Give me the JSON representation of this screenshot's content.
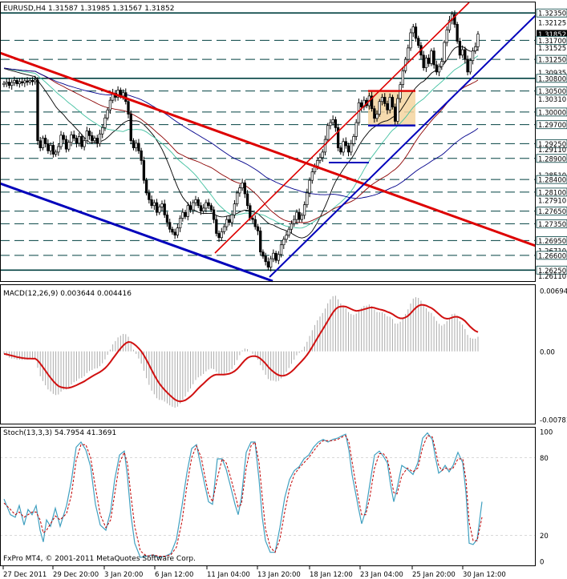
{
  "header": {
    "main": "EURUSD,H4 1.31587 1.31985 1.31567 1.31852",
    "macd": "MACD(12,26,9) 0.003644 0.004416",
    "stoch": "Stoch(13,3,3) 54.7954 41.3691",
    "copyright": "FxPro MT4, © 2001-2011 MetaQuotes Software Corp."
  },
  "colors": {
    "candle": "#000000",
    "red_channel": "#dd0000",
    "blue_channel": "#0000bb",
    "ma_fast": "#000000",
    "ma_slow": "#00008b",
    "ma_teal": "#40c0a0",
    "ma_brown": "#8b0000",
    "level_line": "#004040",
    "macd_signal": "#d01010",
    "macd_hist": "#aaaaaa",
    "stoch_main": "#40a0c0",
    "stoch_signal": "#c00000",
    "box_fill": "#f5d5a0"
  },
  "chart_data": [
    {
      "type": "candlestick",
      "symbol": "EURUSD",
      "timeframe": "H4",
      "ohlc_last": {
        "open": 1.31587,
        "high": 1.31985,
        "low": 1.31567,
        "close": 1.31852
      },
      "ylim": [
        1.2597,
        1.3262
      ],
      "x_tick_labels": [
        "27 Dec 2011",
        "29 Dec 20:00",
        "3 Jan 20:00",
        "6 Jan 12:00",
        "11 Jan 04:00",
        "13 Jan 20:00",
        "18 Jan 12:00",
        "23 Jan 04:00",
        "25 Jan 20:00",
        "30 Jan 12:00"
      ],
      "price_labels": [
        {
          "text": "1.32350",
          "value": 1.3235,
          "boxed": true
        },
        {
          "text": "1.32125",
          "value": 1.32125,
          "boxed": false
        },
        {
          "text": "1.31852",
          "value": 1.31852,
          "boxed": true,
          "current": true
        },
        {
          "text": "1.31700",
          "value": 1.317,
          "boxed": true
        },
        {
          "text": "1.31525",
          "value": 1.31525,
          "boxed": false
        },
        {
          "text": "1.31250",
          "value": 1.3125,
          "boxed": true
        },
        {
          "text": "1.30935",
          "value": 1.30935,
          "boxed": false
        },
        {
          "text": "1.30800",
          "value": 1.308,
          "boxed": true
        },
        {
          "text": "1.30500",
          "value": 1.305,
          "boxed": true
        },
        {
          "text": "1.30310",
          "value": 1.3031,
          "boxed": false
        },
        {
          "text": "1.30000",
          "value": 1.3,
          "boxed": true
        },
        {
          "text": "1.29700",
          "value": 1.297,
          "boxed": true
        },
        {
          "text": "1.29250",
          "value": 1.2925,
          "boxed": true
        },
        {
          "text": "1.29110",
          "value": 1.2911,
          "boxed": false
        },
        {
          "text": "1.28900",
          "value": 1.289,
          "boxed": true
        },
        {
          "text": "1.28510",
          "value": 1.2851,
          "boxed": false
        },
        {
          "text": "1.28400",
          "value": 1.284,
          "boxed": true
        },
        {
          "text": "1.28100",
          "value": 1.281,
          "boxed": true
        },
        {
          "text": "1.27910",
          "value": 1.2791,
          "boxed": false
        },
        {
          "text": "1.27650",
          "value": 1.2765,
          "boxed": true
        },
        {
          "text": "1.27350",
          "value": 1.2735,
          "boxed": true
        },
        {
          "text": "1.26950",
          "value": 1.2695,
          "boxed": true
        },
        {
          "text": "1.26710",
          "value": 1.2671,
          "boxed": false
        },
        {
          "text": "1.26600",
          "value": 1.266,
          "boxed": true
        },
        {
          "text": "1.26250",
          "value": 1.2625,
          "boxed": true
        },
        {
          "text": "1.26110",
          "value": 1.2611,
          "boxed": false
        }
      ],
      "levels_solid": [
        1.3235,
        1.308,
        1.2625
      ],
      "levels_dashed": [
        1.317,
        1.3125,
        1.305,
        1.3,
        1.297,
        1.2925,
        1.289,
        1.284,
        1.281,
        1.2765,
        1.2735,
        1.2695,
        1.266
      ],
      "closes": [
        1.3068,
        1.3071,
        1.3063,
        1.307,
        1.3075,
        1.3067,
        1.3072,
        1.3069,
        1.3074,
        1.3071,
        1.3075,
        1.3072,
        1.3076,
        1.2932,
        1.2915,
        1.2938,
        1.2925,
        1.2908,
        1.2921,
        1.29,
        1.2905,
        1.2918,
        1.2945,
        1.2935,
        1.2912,
        1.2928,
        1.2946,
        1.2938,
        1.2926,
        1.2942,
        1.2918,
        1.2932,
        1.2955,
        1.2944,
        1.2932,
        1.2938,
        1.2925,
        1.2948,
        1.2963,
        1.2986,
        1.3005,
        1.3028,
        1.3045,
        1.3035,
        1.3052,
        1.3038,
        1.3046,
        1.3025,
        1.2995,
        1.2932,
        1.2915,
        1.2926,
        1.2908,
        1.2885,
        1.2838,
        1.2808,
        1.2792,
        1.2778,
        1.2785,
        1.2762,
        1.2775,
        1.2782,
        1.2756,
        1.2738,
        1.2722,
        1.2715,
        1.2708,
        1.2725,
        1.2748,
        1.2762,
        1.2752,
        1.2778,
        1.2768,
        1.2785,
        1.2792,
        1.2778,
        1.2765,
        1.2772,
        1.2785,
        1.2778,
        1.2768,
        1.2745,
        1.2712,
        1.2702,
        1.2716,
        1.2728,
        1.2745,
        1.2738,
        1.2756,
        1.2782,
        1.2808,
        1.282,
        1.2832,
        1.2806,
        1.2778,
        1.2748,
        1.2745,
        1.2728,
        1.2718,
        1.2668,
        1.2658,
        1.2645,
        1.2632,
        1.2652,
        1.2665,
        1.2648,
        1.2662,
        1.2685,
        1.2698,
        1.2708,
        1.2722,
        1.2735,
        1.2745,
        1.2762,
        1.2745,
        1.2755,
        1.278,
        1.2808,
        1.2838,
        1.2858,
        1.2872,
        1.2885,
        1.2892,
        1.2905,
        1.2935,
        1.2968,
        1.2975,
        1.2982,
        1.2963,
        1.2915,
        1.2905,
        1.293,
        1.292,
        1.2905,
        1.2925,
        1.2942,
        1.2975,
        1.3022,
        1.3012,
        1.3028,
        1.3015,
        1.3038,
        1.3008,
        1.2985,
        1.2995,
        1.3025,
        1.3035,
        1.302,
        1.3005,
        1.3035,
        1.3012,
        1.2978,
        1.3032,
        1.3065,
        1.3098,
        1.3125,
        1.3152,
        1.3188,
        1.3202,
        1.3175,
        1.3158,
        1.3135,
        1.3105,
        1.3128,
        1.3115,
        1.3145,
        1.3112,
        1.3095,
        1.3108,
        1.312,
        1.3165,
        1.3195,
        1.3218,
        1.3232,
        1.3208,
        1.3168,
        1.3135,
        1.3148,
        1.3125,
        1.3095,
        1.3122,
        1.3145,
        1.3155,
        1.3185
      ]
    },
    {
      "type": "macd",
      "name": "MACD(12,26,9)",
      "values_text": [
        "0.003644",
        "0.004416"
      ],
      "ylim": [
        -0.00781,
        0.00694
      ],
      "tick_labels": [
        {
          "text": "0.00694",
          "value": 0.00694
        },
        {
          "text": "0.00",
          "value": 0.0
        },
        {
          "text": "-0.00781",
          "value": -0.00781
        }
      ]
    },
    {
      "type": "stochastic",
      "name": "Stoch(13,3,3)",
      "values_text": [
        "54.7954",
        "41.3691"
      ],
      "ylim": [
        0,
        100
      ],
      "tick_labels": [
        {
          "text": "100",
          "value": 100
        },
        {
          "text": "80",
          "value": 80
        },
        {
          "text": "20",
          "value": 20
        },
        {
          "text": "0",
          "value": 0
        }
      ],
      "k_points": [
        [
          0,
          48
        ],
        [
          8,
          36
        ],
        [
          14,
          34
        ],
        [
          19,
          43
        ],
        [
          25,
          28
        ],
        [
          30,
          40
        ],
        [
          35,
          36
        ],
        [
          40,
          43
        ],
        [
          45,
          24
        ],
        [
          49,
          15
        ],
        [
          53,
          32
        ],
        [
          58,
          27
        ],
        [
          64,
          41
        ],
        [
          70,
          27
        ],
        [
          78,
          43
        ],
        [
          84,
          62
        ],
        [
          90,
          88
        ],
        [
          96,
          92
        ],
        [
          102,
          86
        ],
        [
          108,
          73
        ],
        [
          114,
          44
        ],
        [
          120,
          28
        ],
        [
          127,
          24
        ],
        [
          133,
          39
        ],
        [
          138,
          63
        ],
        [
          144,
          82
        ],
        [
          150,
          85
        ],
        [
          154,
          65
        ],
        [
          158,
          37
        ],
        [
          163,
          14
        ],
        [
          170,
          3
        ],
        [
          178,
          4
        ],
        [
          186,
          5
        ],
        [
          193,
          3
        ],
        [
          201,
          4
        ],
        [
          208,
          6
        ],
        [
          215,
          17
        ],
        [
          222,
          43
        ],
        [
          228,
          68
        ],
        [
          234,
          87
        ],
        [
          240,
          90
        ],
        [
          246,
          72
        ],
        [
          250,
          60
        ],
        [
          255,
          46
        ],
        [
          260,
          44
        ],
        [
          266,
          79
        ],
        [
          272,
          79
        ],
        [
          277,
          71
        ],
        [
          282,
          59
        ],
        [
          288,
          44
        ],
        [
          292,
          36
        ],
        [
          296,
          49
        ],
        [
          302,
          84
        ],
        [
          308,
          92
        ],
        [
          313,
          92
        ],
        [
          318,
          63
        ],
        [
          322,
          34
        ],
        [
          326,
          16
        ],
        [
          332,
          7
        ],
        [
          338,
          7
        ],
        [
          344,
          26
        ],
        [
          350,
          49
        ],
        [
          356,
          63
        ],
        [
          362,
          70
        ],
        [
          368,
          73
        ],
        [
          374,
          79
        ],
        [
          380,
          82
        ],
        [
          386,
          88
        ],
        [
          392,
          92
        ],
        [
          398,
          94
        ],
        [
          404,
          92
        ],
        [
          410,
          94
        ],
        [
          416,
          95
        ],
        [
          422,
          97
        ],
        [
          426,
          98
        ],
        [
          430,
          86
        ],
        [
          434,
          67
        ],
        [
          438,
          54
        ],
        [
          442,
          41
        ],
        [
          446,
          29
        ],
        [
          451,
          39
        ],
        [
          456,
          59
        ],
        [
          462,
          82
        ],
        [
          468,
          85
        ],
        [
          473,
          81
        ],
        [
          478,
          76
        ],
        [
          482,
          59
        ],
        [
          486,
          46
        ],
        [
          490,
          56
        ],
        [
          496,
          74
        ],
        [
          503,
          71
        ],
        [
          510,
          67
        ],
        [
          516,
          76
        ],
        [
          522,
          95
        ],
        [
          528,
          99
        ],
        [
          534,
          94
        ],
        [
          538,
          80
        ],
        [
          542,
          68
        ],
        [
          546,
          70
        ],
        [
          550,
          74
        ],
        [
          555,
          69
        ],
        [
          560,
          74
        ],
        [
          566,
          84
        ],
        [
          572,
          76
        ],
        [
          576,
          53
        ],
        [
          580,
          14
        ],
        [
          585,
          13
        ],
        [
          590,
          17
        ],
        [
          596,
          46
        ]
      ],
      "d_points": [
        [
          0,
          45
        ],
        [
          8,
          40
        ],
        [
          14,
          36
        ],
        [
          19,
          38
        ],
        [
          25,
          34
        ],
        [
          30,
          36
        ],
        [
          35,
          38
        ],
        [
          40,
          38
        ],
        [
          45,
          32
        ],
        [
          49,
          22
        ],
        [
          53,
          24
        ],
        [
          58,
          29
        ],
        [
          64,
          35
        ],
        [
          70,
          32
        ],
        [
          78,
          37
        ],
        [
          84,
          51
        ],
        [
          90,
          78
        ],
        [
          96,
          90
        ],
        [
          102,
          90
        ],
        [
          108,
          80
        ],
        [
          114,
          57
        ],
        [
          120,
          36
        ],
        [
          127,
          26
        ],
        [
          133,
          32
        ],
        [
          138,
          52
        ],
        [
          144,
          76
        ],
        [
          150,
          84
        ],
        [
          154,
          75
        ],
        [
          158,
          52
        ],
        [
          163,
          27
        ],
        [
          170,
          8
        ],
        [
          178,
          4
        ],
        [
          186,
          5
        ],
        [
          193,
          4
        ],
        [
          201,
          4
        ],
        [
          208,
          5
        ],
        [
          215,
          11
        ],
        [
          222,
          31
        ],
        [
          228,
          58
        ],
        [
          234,
          80
        ],
        [
          240,
          89
        ],
        [
          246,
          80
        ],
        [
          250,
          67
        ],
        [
          255,
          52
        ],
        [
          260,
          46
        ],
        [
          266,
          64
        ],
        [
          272,
          79
        ],
        [
          277,
          76
        ],
        [
          282,
          66
        ],
        [
          288,
          52
        ],
        [
          292,
          42
        ],
        [
          296,
          44
        ],
        [
          302,
          72
        ],
        [
          308,
          89
        ],
        [
          313,
          92
        ],
        [
          318,
          76
        ],
        [
          322,
          50
        ],
        [
          326,
          25
        ],
        [
          332,
          11
        ],
        [
          338,
          7
        ],
        [
          344,
          17
        ],
        [
          350,
          38
        ],
        [
          356,
          56
        ],
        [
          362,
          67
        ],
        [
          368,
          72
        ],
        [
          374,
          76
        ],
        [
          380,
          80
        ],
        [
          386,
          85
        ],
        [
          392,
          90
        ],
        [
          398,
          93
        ],
        [
          404,
          93
        ],
        [
          410,
          93
        ],
        [
          416,
          94
        ],
        [
          422,
          96
        ],
        [
          426,
          97
        ],
        [
          430,
          92
        ],
        [
          434,
          77
        ],
        [
          438,
          62
        ],
        [
          442,
          48
        ],
        [
          446,
          36
        ],
        [
          451,
          36
        ],
        [
          456,
          49
        ],
        [
          462,
          72
        ],
        [
          468,
          83
        ],
        [
          473,
          83
        ],
        [
          478,
          79
        ],
        [
          482,
          67
        ],
        [
          486,
          53
        ],
        [
          490,
          52
        ],
        [
          496,
          66
        ],
        [
          503,
          72
        ],
        [
          510,
          69
        ],
        [
          516,
          72
        ],
        [
          522,
          88
        ],
        [
          528,
          97
        ],
        [
          534,
          96
        ],
        [
          538,
          86
        ],
        [
          542,
          74
        ],
        [
          546,
          70
        ],
        [
          550,
          72
        ],
        [
          555,
          71
        ],
        [
          560,
          72
        ],
        [
          566,
          79
        ],
        [
          572,
          79
        ],
        [
          576,
          63
        ],
        [
          580,
          30
        ],
        [
          585,
          16
        ],
        [
          590,
          16
        ],
        [
          596,
          34
        ]
      ]
    }
  ]
}
